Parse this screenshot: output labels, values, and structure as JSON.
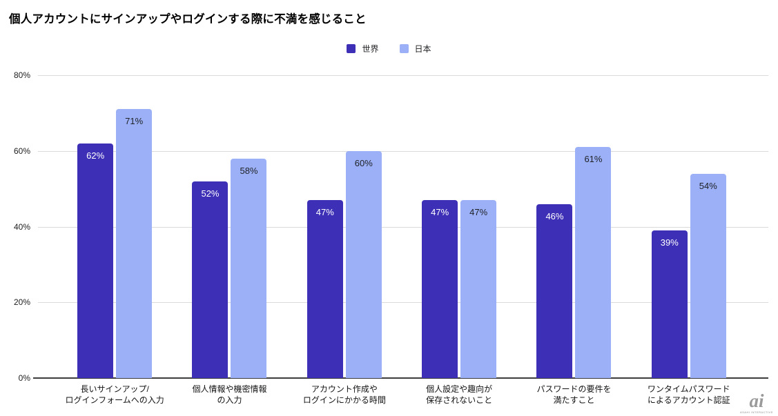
{
  "chart_data": {
    "type": "bar",
    "title": "個人アカウントにサインアップやログインする際に不満を感じること",
    "categories": [
      "長いサインアップ/\nログインフォームへの入力",
      "個人情報や機密情報\nの入力",
      "アカウント作成や\nログインにかかる時間",
      "個人設定や趣向が\n保存されないこと",
      "パスワードの要件を\n満たすこと",
      "ワンタイムパスワード\nによるアカウント認証"
    ],
    "series": [
      {
        "name": "世界",
        "color": "#3e30b6",
        "label_color": "#ffffff",
        "values": [
          62,
          52,
          47,
          47,
          46,
          39
        ]
      },
      {
        "name": "日本",
        "color": "#9bb0f7",
        "label_color": "#1f2126",
        "values": [
          71,
          58,
          60,
          47,
          61,
          54
        ]
      }
    ],
    "value_suffix": "%",
    "y_ticks": [
      "0%",
      "20%",
      "40%",
      "60%",
      "80%"
    ],
    "ylim": [
      0,
      80
    ],
    "grid": true,
    "legend_position": "top-center"
  },
  "watermark": {
    "text": "ai",
    "subtext": "asahi interactive"
  }
}
